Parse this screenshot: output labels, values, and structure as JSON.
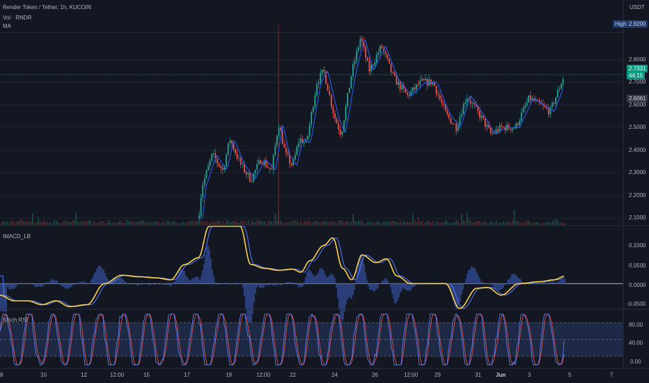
{
  "header": {
    "symbol_line": "Render Token / Tether, 1h, KUCOIN",
    "vol_label": "Vol · RNDR",
    "ma_label": "MA",
    "currency": "USDT"
  },
  "main_pane": {
    "y_ticks": [
      "2.8000",
      "2.7000",
      "2.6000",
      "2.5000",
      "2.4000",
      "2.3000",
      "2.2000",
      "2.1000"
    ],
    "y_tick_values": [
      2.8,
      2.7,
      2.6,
      2.5,
      2.4,
      2.3,
      2.2,
      2.1
    ],
    "high_label": "High",
    "high_value": "2.9200",
    "last_price": "2.7331",
    "countdown": "44:15",
    "crosshair_price": "2.6061",
    "colors": {
      "up": "#26a69a",
      "down": "#ef5350",
      "ma": "#2962ff",
      "price_tag": "#089981",
      "high_tag": "#1e3a6e",
      "cross_tag": "#363a45"
    }
  },
  "macd_pane": {
    "title": "IMACD_LB",
    "y_ticks": [
      "0.1000",
      "0.0500",
      "0.0000",
      "-0.0500"
    ],
    "colors": {
      "line": "#ffd54f",
      "signal": "#5b7fff",
      "hist": "#2a3e7a"
    }
  },
  "stoch_pane": {
    "title": "Stoch RSI",
    "y_ticks": [
      "80.00",
      "40.00",
      "0.00"
    ],
    "colors": {
      "k": "#5b7fff",
      "d": "#e5534b",
      "band": "#1e2a45"
    }
  },
  "x_axis": {
    "labels": [
      "8",
      "10",
      "12",
      "12:00",
      "15",
      "17",
      "19",
      "12:00",
      "22",
      "24",
      "26",
      "12:00",
      "29",
      "31",
      "Jun",
      "3",
      "5",
      "7"
    ]
  },
  "chart_data": {
    "type": "candlestick",
    "timeframe": "1h",
    "price_range": [
      2.07,
      2.94
    ],
    "price_path_keypoints": [
      [
        0,
        2.1
      ],
      [
        285,
        2.1
      ],
      [
        290,
        2.24
      ],
      [
        305,
        2.38
      ],
      [
        320,
        2.31
      ],
      [
        330,
        2.45
      ],
      [
        345,
        2.34
      ],
      [
        360,
        2.27
      ],
      [
        375,
        2.36
      ],
      [
        390,
        2.31
      ],
      [
        400,
        2.52
      ],
      [
        410,
        2.38
      ],
      [
        420,
        2.33
      ],
      [
        430,
        2.45
      ],
      [
        440,
        2.43
      ],
      [
        455,
        2.7
      ],
      [
        465,
        2.75
      ],
      [
        480,
        2.55
      ],
      [
        490,
        2.47
      ],
      [
        505,
        2.74
      ],
      [
        518,
        2.9
      ],
      [
        530,
        2.75
      ],
      [
        548,
        2.86
      ],
      [
        565,
        2.72
      ],
      [
        585,
        2.64
      ],
      [
        605,
        2.7
      ],
      [
        622,
        2.7
      ],
      [
        640,
        2.56
      ],
      [
        655,
        2.5
      ],
      [
        670,
        2.64
      ],
      [
        690,
        2.55
      ],
      [
        705,
        2.47
      ],
      [
        720,
        2.5
      ],
      [
        740,
        2.5
      ],
      [
        760,
        2.63
      ],
      [
        790,
        2.57
      ],
      [
        810,
        2.73
      ]
    ],
    "high": 2.92,
    "last": 2.7331,
    "macd_range": [
      -0.065,
      0.15
    ],
    "stoch_range": [
      0,
      100
    ],
    "stoch_bands": [
      80,
      50,
      20
    ]
  }
}
